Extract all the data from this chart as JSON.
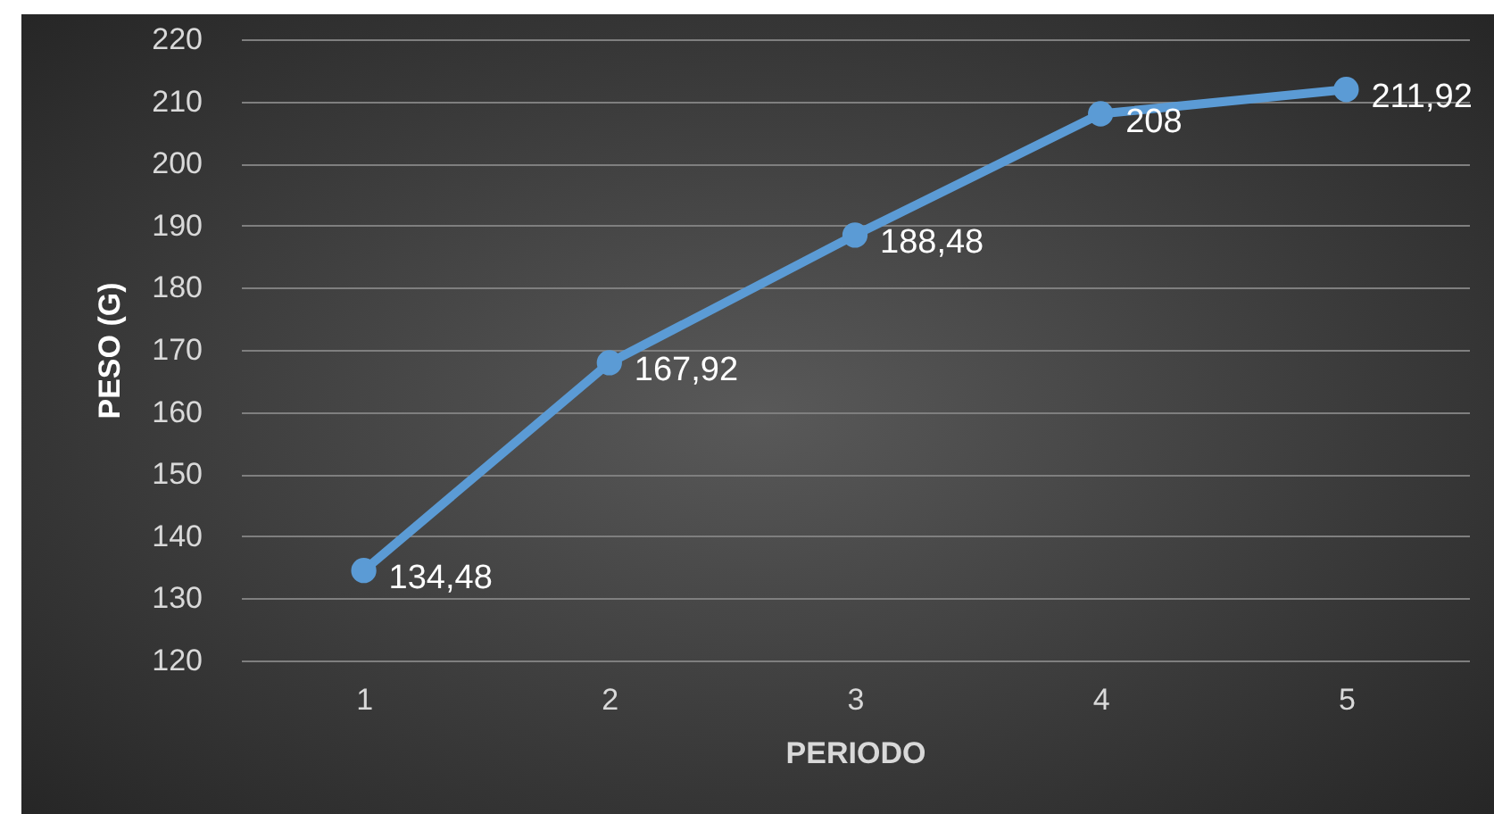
{
  "chart_data": {
    "type": "line",
    "xlabel": "PERIODO",
    "ylabel": "PESO (G)",
    "categories": [
      "1",
      "2",
      "3",
      "4",
      "5"
    ],
    "series": [
      {
        "color": "#5b9bd5",
        "values": [
          134.48,
          167.92,
          188.48,
          208,
          211.92
        ],
        "value_labels": [
          "134,48",
          "167,92",
          "188,48",
          "208",
          "211,92"
        ]
      }
    ],
    "ylim": [
      120,
      220
    ],
    "yticks": [
      120,
      130,
      140,
      150,
      160,
      170,
      180,
      190,
      200,
      210,
      220
    ],
    "grid": "y",
    "marker": "circle",
    "line_style": "solid"
  }
}
